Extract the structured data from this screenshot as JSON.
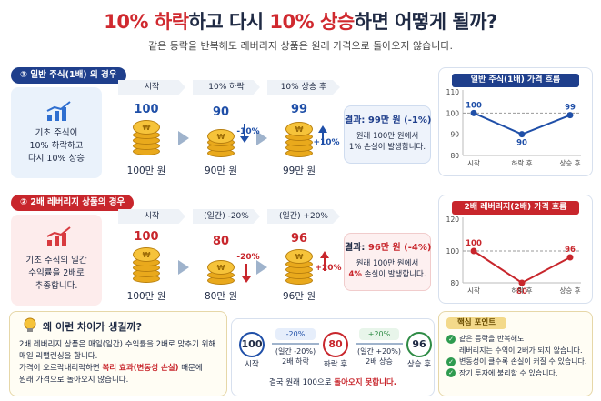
{
  "title": {
    "part1": "10% 하락",
    "part2": "하고 다시 ",
    "part3": "10% 상승",
    "part4": "하면 어떻게 될까?"
  },
  "subtitle": "같은 등락을 반복해도 레버리지 상품은 원래 가격으로 돌아오지 않습니다.",
  "section1": {
    "badge": "① 일반 주식(1배) 의 경우",
    "info": [
      "기초 주식이",
      "10% 하락하고",
      "다시 10% 상승"
    ],
    "stages": [
      {
        "label": "시작",
        "value": "100",
        "amount": "100만 원"
      },
      {
        "label": "10% 하락",
        "value": "90",
        "amount": "90만 원"
      },
      {
        "label": "10% 상승 후",
        "value": "99",
        "amount": "99만 원"
      }
    ],
    "change_down": "-10%",
    "change_up": "+10%",
    "result_head": "결과: 99만 원 (-1%)",
    "result_body": [
      "원래 100만 원에서",
      "1% 손실이 발생합니다."
    ],
    "chart_title": "일반 주식(1배) 가격 흐름",
    "colors": {
      "accent": "#1f3f8c"
    }
  },
  "section2": {
    "badge": "② 2배 레버리지 상품의 경우",
    "info": [
      "기초 주식의 일간",
      "수익률을 2배로",
      "추종합니다."
    ],
    "stages": [
      {
        "label": "시작",
        "value": "100",
        "amount": "100만 원"
      },
      {
        "label": "(일간) -20%",
        "value": "80",
        "amount": "80만 원"
      },
      {
        "label": "(일간) +20%",
        "value": "96",
        "amount": "96만 원"
      }
    ],
    "change_down": "-20%",
    "change_up": "+20%",
    "result_head_prefix": "결과: ",
    "result_head_value": "96만 원 (-4%)",
    "result_body_1": "원래 100만 원에서",
    "result_body_2a": "4%",
    "result_body_2b": " 손실이 발생합니다.",
    "chart_title": "2배 레버리지(2배) 가격 흐름",
    "colors": {
      "accent": "#c8262c"
    }
  },
  "chart_data": [
    {
      "type": "line",
      "title": "일반 주식(1배) 가격 흐름",
      "categories": [
        "시작",
        "하락 후",
        "상승 후"
      ],
      "values": [
        100,
        90,
        99
      ],
      "ylim": [
        80,
        110
      ],
      "yticks": [
        "110",
        "100",
        "90",
        "80"
      ],
      "reference_line": 100,
      "color": "#1f4fa8"
    },
    {
      "type": "line",
      "title": "2배 레버리지(2배) 가격 흐름",
      "categories": [
        "시작",
        "하락 후",
        "상승 후"
      ],
      "values": [
        100,
        80,
        96
      ],
      "ylim": [
        80,
        120
      ],
      "yticks": [
        "120",
        "100",
        "80"
      ],
      "reference_line": 100,
      "color": "#c8262c"
    }
  ],
  "why": {
    "heading": "왜 이런 차이가 생길까?",
    "line1": "2배 레버리지 상품은 매일(일간) 수익률을 2배로 맞추기 위해",
    "line2": "매일 리밸런싱을 합니다.",
    "line3a": "가격이 오르락내리락하면 ",
    "line3b": "복리 효과(변동성 손실)",
    "line3c": " 때문에",
    "line4": "원래 가격으로 돌아오지 않습니다."
  },
  "flow": {
    "start_value": "100",
    "start_label": "시작",
    "step1_tag": "-20%",
    "step1_desc": "(일간 -20%)",
    "step1_desc2": "2배 하락",
    "mid_value": "80",
    "mid_label": "하락 후",
    "step2_tag": "+20%",
    "step2_desc": "(일간 +20%)",
    "step2_desc2": "2배 상승",
    "end_value": "96",
    "end_label": "상승 후",
    "conclusion_a": "결국 원래 100으로 ",
    "conclusion_b": "돌아오지 못합니다."
  },
  "key_points": {
    "heading": "핵심 포인트",
    "items": [
      "같은 등락을 반복해도",
      "레버리지는 수익이 2배가 되지 않습니다.",
      "변동성이 클수록 손실이 커질 수 있습니다.",
      "장기 투자에 불리할 수 있습니다."
    ]
  }
}
